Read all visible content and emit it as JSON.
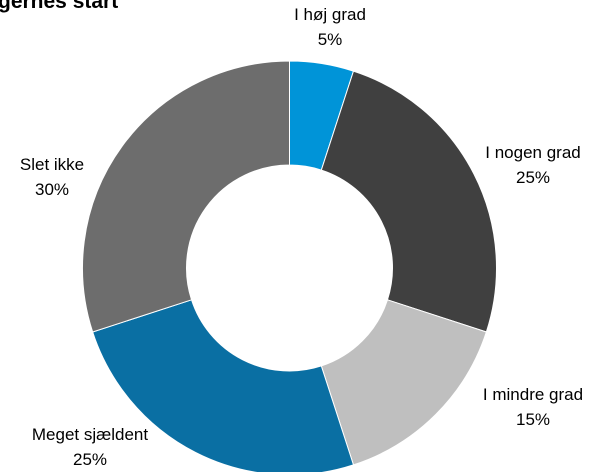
{
  "chart_data": {
    "type": "donut",
    "title": "gernes start",
    "categories": [
      "I høj grad",
      "I nogen grad",
      "I mindre grad",
      "Meget sjældent",
      "Slet ikke"
    ],
    "values": [
      5,
      25,
      15,
      25,
      30
    ],
    "value_labels": [
      "5%",
      "25%",
      "15%",
      "25%",
      "30%"
    ],
    "colors": [
      "#0094d8",
      "#404040",
      "#bfbfbf",
      "#0a6fa3",
      "#6d6d6d"
    ]
  }
}
